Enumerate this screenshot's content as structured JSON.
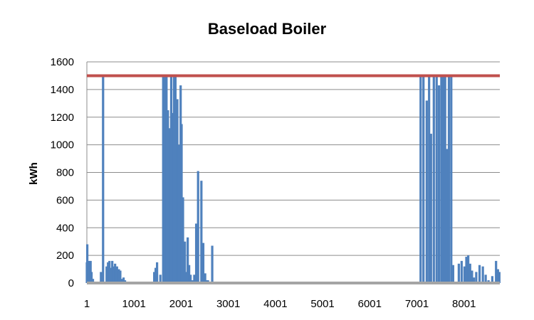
{
  "chart_data": {
    "type": "bar",
    "title": "Baseload Boiler",
    "xlabel": "",
    "ylabel": "kWh",
    "x_ticks": [
      "1",
      "1001",
      "2001",
      "3001",
      "4001",
      "5001",
      "6001",
      "7001",
      "8001"
    ],
    "y_ticks": [
      "0",
      "200",
      "400",
      "600",
      "800",
      "1000",
      "1200",
      "1400",
      "1600"
    ],
    "xlim": [
      1,
      8760
    ],
    "ylim": [
      0,
      1600
    ],
    "grid": true,
    "legend": "none",
    "colors": {
      "demand": "#4f81bd",
      "capacity": "#c0504d",
      "baseline": "#a5a5a5"
    },
    "series": [
      {
        "type": "bar",
        "color": "#4f81bd",
        "x": [
          1,
          10,
          30,
          50,
          80,
          100,
          130,
          300,
          345,
          420,
          450,
          480,
          510,
          540,
          570,
          600,
          640,
          680,
          710,
          750,
          780,
          810,
          1430,
          1460,
          1490,
          1560,
          1620,
          1660,
          1690,
          1720,
          1760,
          1790,
          1820,
          1850,
          1880,
          1920,
          1950,
          1990,
          2010,
          2040,
          2080,
          2110,
          2140,
          2170,
          2200,
          2240,
          2280,
          2320,
          2360,
          2430,
          2470,
          2510,
          2540,
          2570,
          2660,
          7080,
          7140,
          7210,
          7260,
          7300,
          7360,
          7420,
          7470,
          7520,
          7560,
          7600,
          7640,
          7680,
          7730,
          7770,
          7890,
          7950,
          8010,
          8050,
          8090,
          8130,
          8170,
          8210,
          8260,
          8330,
          8400,
          8460,
          8520,
          8600,
          8680,
          8720,
          8750
        ],
        "values": [
          150,
          280,
          60,
          160,
          160,
          80,
          30,
          80,
          1500,
          120,
          150,
          160,
          110,
          160,
          120,
          140,
          120,
          100,
          90,
          30,
          40,
          20,
          80,
          110,
          150,
          60,
          1500,
          1500,
          1500,
          1250,
          1120,
          1500,
          1230,
          1500,
          1510,
          1330,
          1000,
          1430,
          1150,
          620,
          300,
          80,
          330,
          130,
          60,
          20,
          60,
          430,
          810,
          740,
          290,
          70,
          20,
          20,
          270,
          1500,
          1500,
          1320,
          1500,
          1080,
          1500,
          1500,
          1430,
          1500,
          1500,
          1510,
          970,
          1500,
          1500,
          130,
          140,
          160,
          120,
          190,
          200,
          140,
          90,
          40,
          80,
          130,
          120,
          60,
          20,
          50,
          160,
          100,
          80
        ]
      },
      {
        "type": "line",
        "name": "",
        "color": "#c0504d",
        "x": [
          1,
          8760
        ],
        "values": [
          1500,
          1500
        ]
      },
      {
        "type": "line",
        "name": "",
        "color": "#a5a5a5",
        "x": [
          1,
          8760
        ],
        "values": [
          0,
          0
        ]
      }
    ]
  }
}
